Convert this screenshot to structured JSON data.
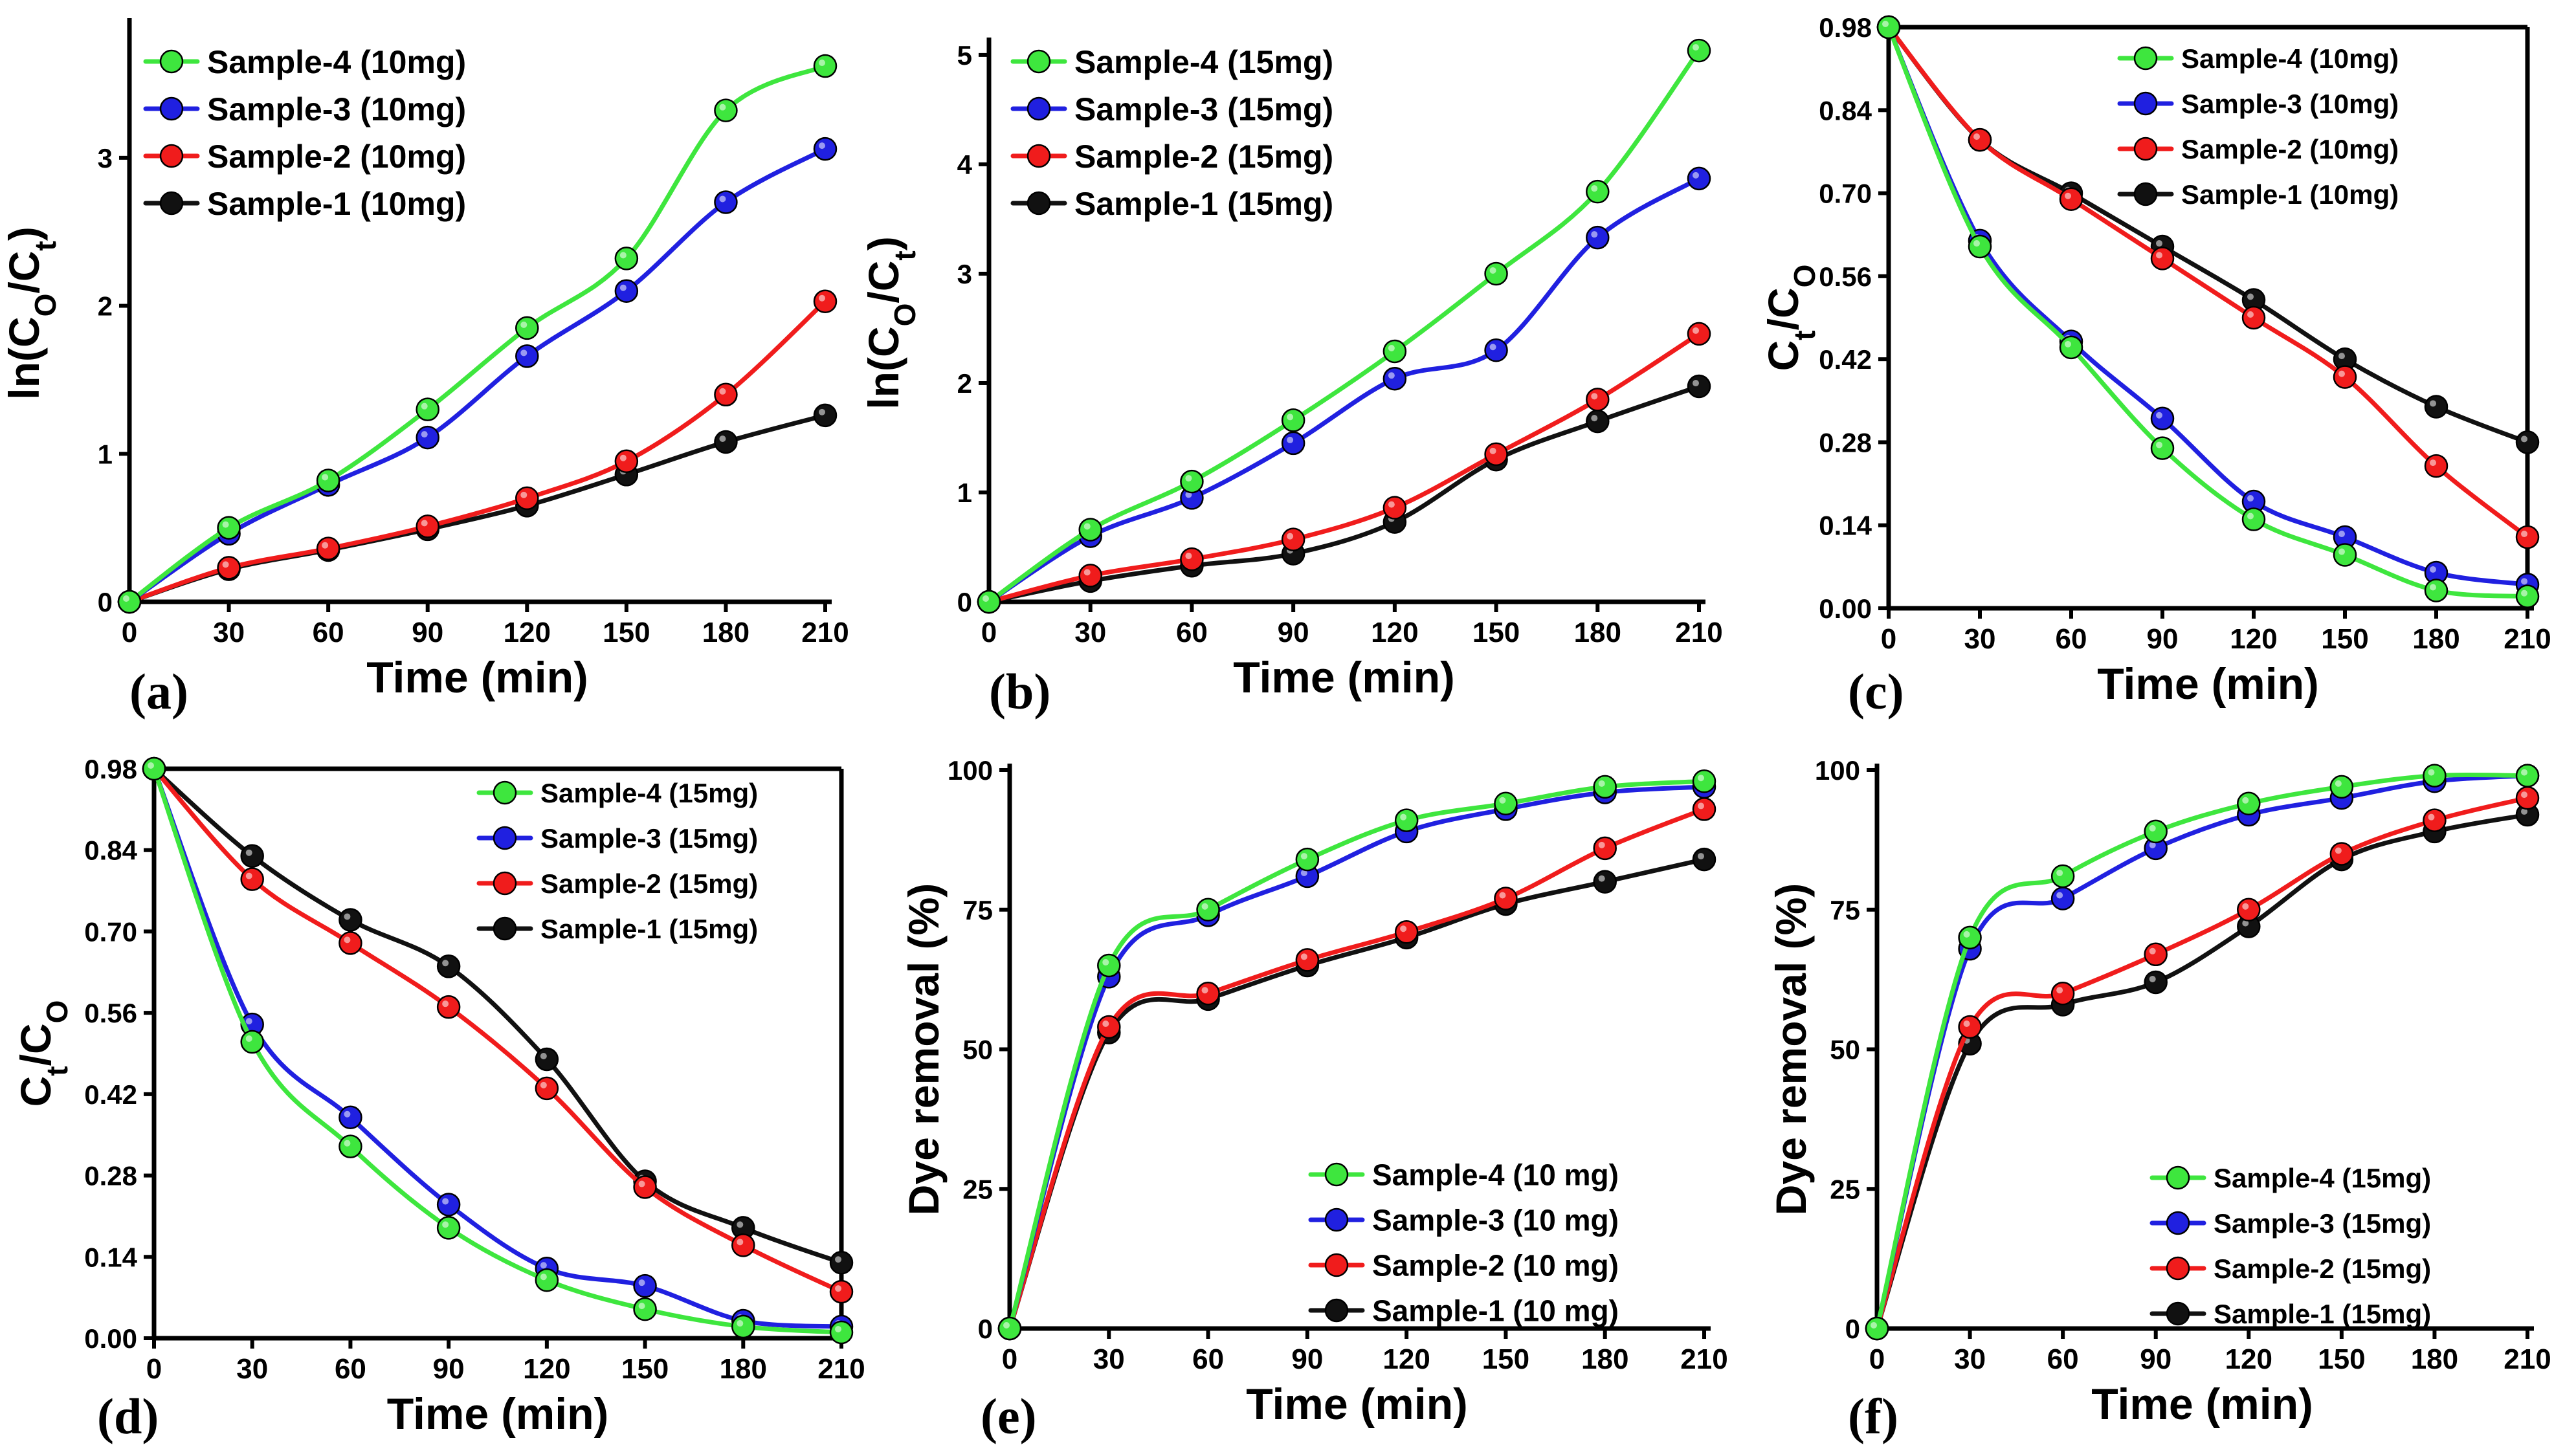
{
  "chart_data": [
    {
      "id": "a",
      "panel_label": "(a)",
      "type": "line",
      "xlabel": "Time (min)",
      "ylabel_main": "ln(C",
      "ylabel_sub1": "O",
      "ylabel_mid": "/C",
      "ylabel_sub2": "t",
      "ylabel_end": ")",
      "x": [
        0,
        30,
        60,
        90,
        120,
        150,
        180,
        210
      ],
      "xticks": [
        "0",
        "30",
        "60",
        "90",
        "120",
        "150",
        "180",
        "210"
      ],
      "xlim": [
        0,
        210
      ],
      "yticks": [
        "0",
        "1",
        "2",
        "3"
      ],
      "ytick_values": [
        0,
        1,
        2,
        3
      ],
      "ylim": [
        0,
        3.9
      ],
      "legend_position": "top-left",
      "series": [
        {
          "name": "Sample-4 (10mg)",
          "color": "#3ee63e",
          "values": [
            0,
            0.5,
            0.82,
            1.3,
            1.85,
            2.32,
            3.32,
            3.62
          ]
        },
        {
          "name": "Sample-3 (10mg)",
          "color": "#2020e0",
          "values": [
            0,
            0.46,
            0.79,
            1.11,
            1.66,
            2.1,
            2.7,
            3.06
          ]
        },
        {
          "name": "Sample-2 (10mg)",
          "color": "#f01c1c",
          "values": [
            0,
            0.23,
            0.36,
            0.51,
            0.7,
            0.95,
            1.4,
            2.03
          ]
        },
        {
          "name": "Sample-1 (10mg)",
          "color": "#111111",
          "values": [
            0,
            0.22,
            0.35,
            0.49,
            0.65,
            0.86,
            1.08,
            1.26
          ]
        }
      ]
    },
    {
      "id": "b",
      "panel_label": "(b)",
      "type": "line",
      "xlabel": "Time (min)",
      "ylabel_main": "ln(C",
      "ylabel_sub1": "O",
      "ylabel_mid": "/C",
      "ylabel_sub2": "t",
      "ylabel_end": ")",
      "x": [
        0,
        30,
        60,
        90,
        120,
        150,
        180,
        210
      ],
      "xticks": [
        "0",
        "30",
        "60",
        "90",
        "120",
        "150",
        "180",
        "210"
      ],
      "xlim": [
        0,
        210
      ],
      "yticks": [
        "0",
        "1",
        "2",
        "3",
        "4",
        "5"
      ],
      "ytick_values": [
        0,
        1,
        2,
        3,
        4,
        5
      ],
      "ylim": [
        0,
        5.1
      ],
      "legend_position": "top-left",
      "series": [
        {
          "name": "Sample-4 (15mg)",
          "color": "#3ee63e",
          "values": [
            0,
            0.66,
            1.1,
            1.66,
            2.29,
            3.0,
            3.75,
            5.04
          ]
        },
        {
          "name": "Sample-3 (15mg)",
          "color": "#2020e0",
          "values": [
            0,
            0.6,
            0.95,
            1.45,
            2.04,
            2.3,
            3.33,
            3.87
          ]
        },
        {
          "name": "Sample-2 (15mg)",
          "color": "#f01c1c",
          "values": [
            0,
            0.24,
            0.39,
            0.57,
            0.86,
            1.35,
            1.85,
            2.45
          ]
        },
        {
          "name": "Sample-1 (15mg)",
          "color": "#111111",
          "values": [
            0,
            0.19,
            0.33,
            0.44,
            0.73,
            1.3,
            1.65,
            1.97
          ]
        }
      ]
    },
    {
      "id": "c",
      "panel_label": "(c)",
      "type": "line",
      "xlabel": "Time (min)",
      "ylabel_main": "C",
      "ylabel_sub1": "t",
      "ylabel_mid": "/C",
      "ylabel_sub2": "O",
      "ylabel_end": "",
      "x": [
        0,
        30,
        60,
        90,
        120,
        150,
        180,
        210
      ],
      "xticks": [
        "0",
        "30",
        "60",
        "90",
        "120",
        "150",
        "180",
        "210"
      ],
      "xlim": [
        0,
        210
      ],
      "yticks": [
        "0.00",
        "0.14",
        "0.28",
        "0.42",
        "0.56",
        "0.70",
        "0.84",
        "0.98"
      ],
      "ytick_values": [
        0,
        0.14,
        0.28,
        0.42,
        0.56,
        0.7,
        0.84,
        0.98
      ],
      "ylim": [
        0,
        0.98
      ],
      "legend_position": "top-right",
      "series": [
        {
          "name": "Sample-4 (10mg)",
          "color": "#3ee63e",
          "values": [
            0.98,
            0.61,
            0.44,
            0.27,
            0.15,
            0.09,
            0.03,
            0.02
          ]
        },
        {
          "name": "Sample-3 (10mg)",
          "color": "#2020e0",
          "values": [
            0.98,
            0.62,
            0.45,
            0.32,
            0.18,
            0.12,
            0.06,
            0.04
          ]
        },
        {
          "name": "Sample-2 (10mg)",
          "color": "#f01c1c",
          "values": [
            0.98,
            0.79,
            0.69,
            0.59,
            0.49,
            0.39,
            0.24,
            0.12
          ]
        },
        {
          "name": "Sample-1 (10mg)",
          "color": "#111111",
          "values": [
            0.98,
            0.79,
            0.7,
            0.61,
            0.52,
            0.42,
            0.34,
            0.28
          ]
        }
      ]
    },
    {
      "id": "d",
      "panel_label": "(d)",
      "type": "line",
      "xlabel": "Time (min)",
      "ylabel_main": "C",
      "ylabel_sub1": "t",
      "ylabel_mid": "/C",
      "ylabel_sub2": "O",
      "ylabel_end": "",
      "x": [
        0,
        30,
        60,
        90,
        120,
        150,
        180,
        210
      ],
      "xticks": [
        "0",
        "30",
        "60",
        "90",
        "120",
        "150",
        "180",
        "210"
      ],
      "xlim": [
        0,
        210
      ],
      "yticks": [
        "0.00",
        "0.14",
        "0.28",
        "0.42",
        "0.56",
        "0.70",
        "0.84",
        "0.98"
      ],
      "ytick_values": [
        0,
        0.14,
        0.28,
        0.42,
        0.56,
        0.7,
        0.84,
        0.98
      ],
      "ylim": [
        0,
        0.98
      ],
      "legend_position": "top-right",
      "series": [
        {
          "name": "Sample-4 (15mg)",
          "color": "#3ee63e",
          "values": [
            0.98,
            0.51,
            0.33,
            0.19,
            0.1,
            0.05,
            0.02,
            0.01
          ]
        },
        {
          "name": "Sample-3 (15mg)",
          "color": "#2020e0",
          "values": [
            0.98,
            0.54,
            0.38,
            0.23,
            0.12,
            0.09,
            0.03,
            0.02
          ]
        },
        {
          "name": "Sample-2 (15mg)",
          "color": "#f01c1c",
          "values": [
            0.98,
            0.79,
            0.68,
            0.57,
            0.43,
            0.26,
            0.16,
            0.08
          ]
        },
        {
          "name": "Sample-1 (15mg)",
          "color": "#111111",
          "values": [
            0.98,
            0.83,
            0.72,
            0.64,
            0.48,
            0.27,
            0.19,
            0.13
          ]
        }
      ]
    },
    {
      "id": "e",
      "panel_label": "(e)",
      "type": "line",
      "xlabel": "Time (min)",
      "ylabel_main": "Dye removal (%)",
      "ylabel_sub1": "",
      "ylabel_mid": "",
      "ylabel_sub2": "",
      "ylabel_end": "",
      "x": [
        0,
        30,
        60,
        90,
        120,
        150,
        180,
        210
      ],
      "xticks": [
        "0",
        "30",
        "60",
        "90",
        "120",
        "150",
        "180",
        "210"
      ],
      "xlim": [
        0,
        210
      ],
      "yticks": [
        "0",
        "25",
        "50",
        "75",
        "100"
      ],
      "ytick_values": [
        0,
        25,
        50,
        75,
        100
      ],
      "ylim": [
        0,
        100
      ],
      "legend_position": "bottom-right",
      "series": [
        {
          "name": "Sample-4 (10 mg)",
          "color": "#3ee63e",
          "values": [
            0,
            65,
            75,
            84,
            91,
            94,
            97,
            98
          ]
        },
        {
          "name": "Sample-3 (10 mg)",
          "color": "#2020e0",
          "values": [
            0,
            63,
            74,
            81,
            89,
            93,
            96,
            97
          ]
        },
        {
          "name": "Sample-2 (10 mg)",
          "color": "#f01c1c",
          "values": [
            0,
            54,
            60,
            66,
            71,
            77,
            86,
            93
          ]
        },
        {
          "name": "Sample-1 (10 mg)",
          "color": "#111111",
          "values": [
            0,
            53,
            59,
            65,
            70,
            76,
            80,
            84
          ]
        }
      ]
    },
    {
      "id": "f",
      "panel_label": "(f)",
      "type": "line",
      "xlabel": "Time (min)",
      "ylabel_main": "Dye removal (%)",
      "ylabel_sub1": "",
      "ylabel_mid": "",
      "ylabel_sub2": "",
      "ylabel_end": "",
      "x": [
        0,
        30,
        60,
        90,
        120,
        150,
        180,
        210
      ],
      "xticks": [
        "0",
        "30",
        "60",
        "90",
        "120",
        "150",
        "180",
        "210"
      ],
      "xlim": [
        0,
        210
      ],
      "yticks": [
        "0",
        "25",
        "50",
        "75",
        "100"
      ],
      "ytick_values": [
        0,
        25,
        50,
        75,
        100
      ],
      "ylim": [
        0,
        100
      ],
      "legend_position": "bottom-right",
      "series": [
        {
          "name": "Sample-4 (15mg)",
          "color": "#3ee63e",
          "values": [
            0,
            70,
            81,
            89,
            94,
            97,
            99,
            99
          ]
        },
        {
          "name": "Sample-3 (15mg)",
          "color": "#2020e0",
          "values": [
            0,
            68,
            77,
            86,
            92,
            95,
            98,
            99
          ]
        },
        {
          "name": "Sample-2 (15mg)",
          "color": "#f01c1c",
          "values": [
            0,
            54,
            60,
            67,
            75,
            85,
            91,
            95
          ]
        },
        {
          "name": "Sample-1 (15mg)",
          "color": "#111111",
          "values": [
            0,
            51,
            58,
            62,
            72,
            84,
            89,
            92
          ]
        }
      ]
    }
  ]
}
